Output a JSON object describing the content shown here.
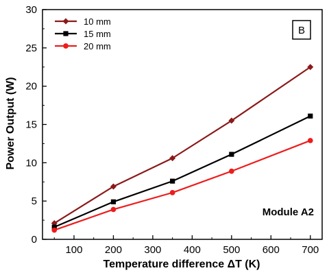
{
  "chart_data": {
    "type": "line",
    "xlabel": "Temperature difference ΔT (K)",
    "ylabel": "Power Output (W)",
    "xlim": [
      20,
      730
    ],
    "ylim": [
      0,
      30
    ],
    "xticks": [
      100,
      200,
      300,
      400,
      500,
      600,
      700
    ],
    "yticks": [
      0,
      5,
      10,
      15,
      20,
      25,
      30
    ],
    "x": [
      50,
      200,
      350,
      500,
      700
    ],
    "series": [
      {
        "name": "10 mm",
        "values": [
          2.1,
          6.9,
          10.6,
          15.5,
          22.5
        ],
        "color": "#8b1a1a",
        "marker": "diamond"
      },
      {
        "name": "15 mm",
        "values": [
          1.6,
          4.9,
          7.6,
          11.1,
          16.1
        ],
        "color": "#000000",
        "marker": "square"
      },
      {
        "name": "20 mm",
        "values": [
          1.2,
          3.9,
          6.1,
          8.9,
          12.9
        ],
        "color": "#ee1c1c",
        "marker": "circle"
      }
    ],
    "legend_position": "top-left",
    "panel_label": "B",
    "annotation": "Module A2",
    "grid": false
  }
}
